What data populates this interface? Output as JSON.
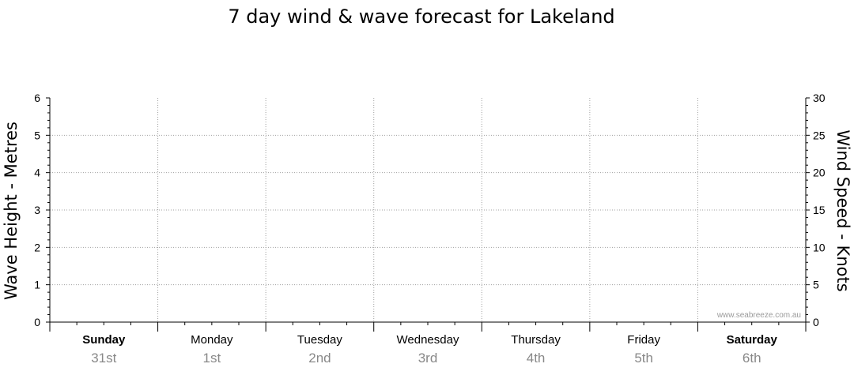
{
  "chart_data": {
    "type": "line",
    "title": "7 day wind & wave forecast for Lakeland",
    "y_left": {
      "label": "Wave Height - Metres",
      "range": [
        0,
        6
      ],
      "ticks": [
        "0",
        "1",
        "2",
        "3",
        "4",
        "5",
        "6"
      ]
    },
    "y_right": {
      "label": "Wind Speed - Knots",
      "range": [
        0,
        30
      ],
      "ticks": [
        "0",
        "5",
        "10",
        "15",
        "20",
        "25",
        "30"
      ]
    },
    "days": [
      {
        "name": "Sunday",
        "date": "31st",
        "bold": true
      },
      {
        "name": "Monday",
        "date": "1st",
        "bold": false
      },
      {
        "name": "Tuesday",
        "date": "2nd",
        "bold": false
      },
      {
        "name": "Wednesday",
        "date": "3rd",
        "bold": false
      },
      {
        "name": "Thursday",
        "date": "4th",
        "bold": false
      },
      {
        "name": "Friday",
        "date": "5th",
        "bold": false
      },
      {
        "name": "Saturday",
        "date": "6th",
        "bold": true
      }
    ],
    "series": [],
    "grid": true,
    "watermark": "www.seabreeze.com.au",
    "colors": {
      "grid": "#a0a0a0",
      "axis": "#000000",
      "date": "#888888",
      "watermark": "#9a9a9a"
    }
  }
}
